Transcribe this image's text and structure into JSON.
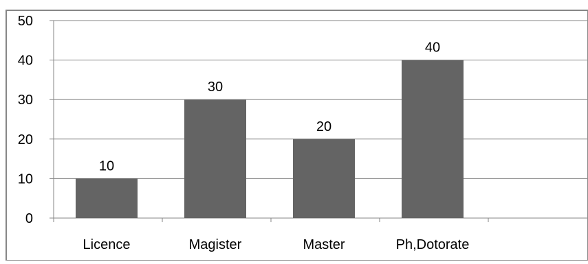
{
  "chart_data": {
    "type": "bar",
    "categories": [
      "Licence",
      "Magister",
      "Master",
      "Ph,Dotorate"
    ],
    "values": [
      10,
      30,
      20,
      40
    ],
    "data_labels": [
      "10",
      "30",
      "20",
      "40"
    ],
    "yticks": [
      "0",
      "10",
      "20",
      "30",
      "40",
      "50"
    ],
    "ylim": [
      0,
      50
    ],
    "grid": true,
    "legend": "none",
    "title": "",
    "xlabel": "",
    "ylabel": "",
    "bar_color": "#646464",
    "grid_color": "#868686",
    "frame_color": "#868686"
  }
}
